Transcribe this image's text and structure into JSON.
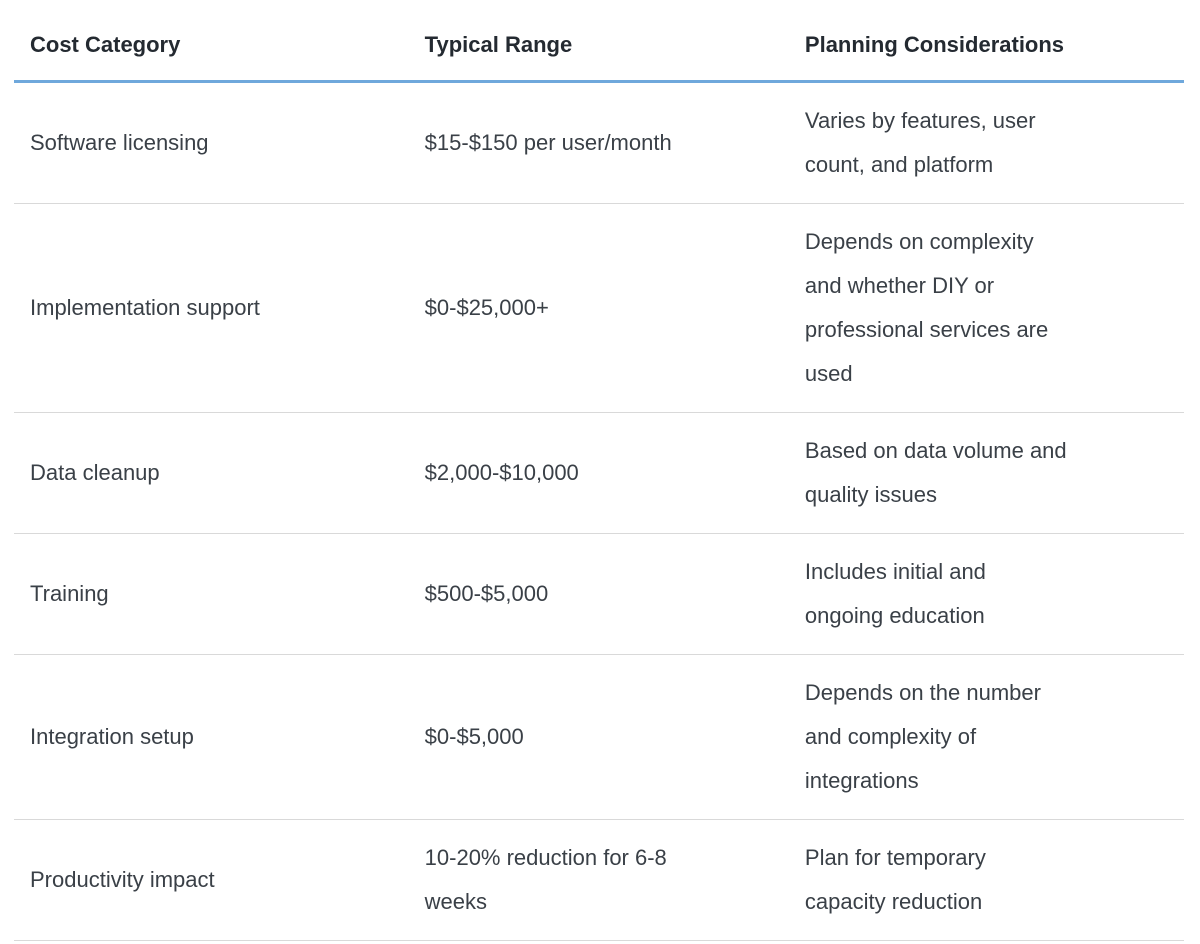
{
  "page": {
    "background": "#ffffff"
  },
  "colors": {
    "header_underline": "#6fa8dc",
    "row_divider": "#d9d9d9",
    "header_text": "#242a31",
    "body_text": "#3a4047"
  },
  "table": {
    "columns": [
      "Cost Category",
      "Typical Range",
      "Planning Considerations"
    ],
    "rows": [
      {
        "category": "Software licensing",
        "range": "$15-$150 per user/month",
        "considerations": [
          "Varies by features, user",
          "count, and platform"
        ]
      },
      {
        "category": "Implementation support",
        "range": "$0-$25,000+",
        "considerations": [
          "Depends on complexity",
          "and whether DIY or",
          "professional services are",
          "used"
        ]
      },
      {
        "category": "Data cleanup",
        "range": "$2,000-$10,000",
        "considerations": [
          "Based on data volume and",
          "quality issues"
        ]
      },
      {
        "category": "Training",
        "range": "$500-$5,000",
        "considerations": [
          "Includes initial and",
          "ongoing education"
        ]
      },
      {
        "category": "Integration setup",
        "range": "$0-$5,000",
        "considerations": [
          "Depends on the number",
          "and complexity of",
          "integrations"
        ]
      },
      {
        "category": "Productivity impact",
        "range": [
          "10-20% reduction for 6-8",
          "weeks"
        ],
        "considerations": [
          "Plan for temporary",
          "capacity reduction"
        ]
      }
    ]
  }
}
